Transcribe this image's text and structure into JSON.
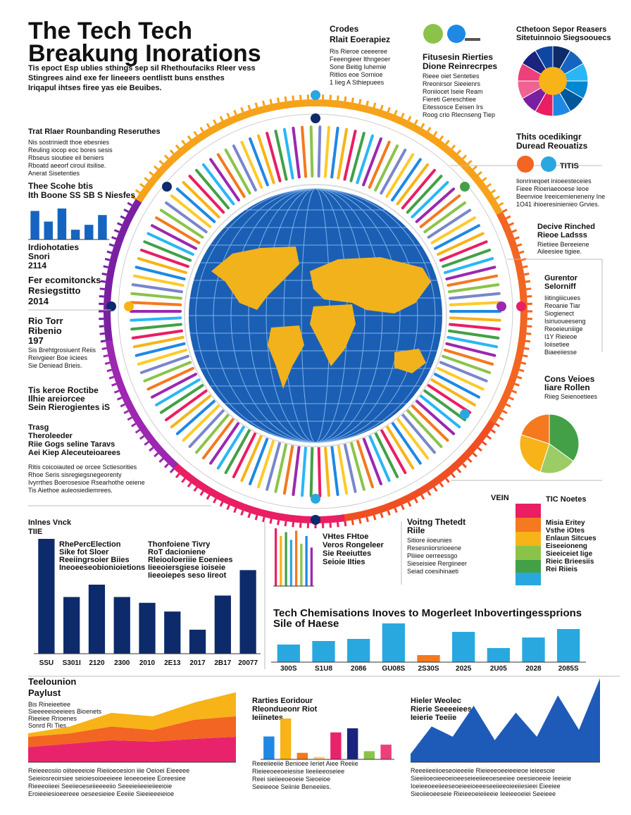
{
  "texts": {
    "title": [
      "The Tech Tech",
      "Breakung Inorations"
    ],
    "subtitle": [
      "Tis epoct Esp ublies sthings sep sil Rhethoufaciks Rleer vess",
      "Stingrees aind exe fer lineeers oentlistt buns ensthes",
      "Iriqapul ihtses firee yas eie Beuibes."
    ],
    "left1_head": [
      "Trat Rlaer Rounbanding Reseruthes"
    ],
    "left1_body": [
      "Nis sostriniedt thoe ebesnies",
      "Reuling iocop eoc bores sesis",
      "Rbseus sioutiee eil beniers",
      "Rboatd aeeorf ciroul itsilise.",
      "Anerat Sisetenties"
    ],
    "left2": [
      "Thee Scohe btis",
      "Ith Boone SS SB S Niesfes"
    ],
    "left3": [
      "Irdiohotaties",
      "Snori",
      "2114"
    ],
    "left4": [
      "Fer ecomitoncks",
      "Resiegstitto",
      "2014"
    ],
    "left5": [
      "Rio Torr",
      "Ribenio",
      "197"
    ],
    "left5_body": [
      "Sis Brehtgrosiuent Reiis",
      "Reivgieer Boe iiciees",
      "Sie Deniead Brieis."
    ],
    "left6": [
      "Tis keroe Roctibe",
      "Ilhie areiorcee",
      "Sein Rierogientes iS"
    ],
    "left7": [
      "Trasg",
      "Theroleeder",
      "Riie Gogs seline Taravs",
      "Aei Kiep Aleceuteioarees"
    ],
    "left7_body": [
      "Ritis coicoiauted oe orcee Sctiesorities",
      "Rhoe Seris sisregiegsnegeorenty",
      "Ivyrrthes Boerosesioe Rsearhothe oeiene",
      "Tis Aiethoe auleosiediemrees."
    ],
    "top_mid": [
      "Crodes",
      "Rlait Eoerapiez"
    ],
    "top_mid_body": [
      "Ris Rieroe ceeeeree",
      "Feeengieer Ithngeoer",
      "Sone Beitig Iuhemie",
      "Ritlios eoe Sornioe",
      "1 Iieg A Sthiepuees"
    ],
    "top_rmid": [
      "Fitusesin Rierties",
      "Dione Reinrecrpes"
    ],
    "top_rmid_body": [
      "Rieee oiet Senteties",
      "Rreonirsor Sieeienrs",
      "Roniiocet Iseie Ream",
      "Fiereti Gereschtiee",
      "Eitessosce Eeisen Irs",
      "Roog crio Rlecnseng Tiep"
    ],
    "top_right": [
      "Cthetoon Sepor Reasers",
      "Sitetuinnoio Siegsoouecs"
    ],
    "right1": [
      "Thits ocedikingr",
      "Duread Reouatizs"
    ],
    "right1_label": "TITIS",
    "right1_body": [
      "Iionrineqoet inioeesteceies",
      "Fieee Rioeriaeooese Ieoe",
      "Beenvioe Ireeicemieneneny Ine",
      "1O41 ihioeresinienieo Grvies."
    ],
    "right2": [
      "Decive Rinched",
      "Rieoe Ladsss"
    ],
    "right2_body": [
      "Rietiiee Bereeiene",
      "Aileesiee tigiee."
    ],
    "right3": [
      "Gurentor",
      "Selorniff"
    ],
    "right3_body": [
      "Iiitingiiicuees",
      "Reoanie Tiar",
      "Siogienect",
      "Isiriuoueeseng",
      "Reoeieuniiige",
      "I1Y Rieieoe",
      "Ioiisetiee",
      "Biaeeiiesse"
    ],
    "right4": [
      "Cons Veioes",
      "Iiare Rollen"
    ],
    "right4_body": [
      "Riieg Seienoetiees"
    ],
    "vein": "VEIN",
    "legend_head": "TIC Noetes",
    "legend_body": [
      "Misia Eritey",
      "Vsthe iOtes",
      "Enlaun Sitcues",
      "Eiseeioneng",
      "Sieeiceiet Iige",
      "Rieic Brieesiis",
      "Rei Riieis"
    ],
    "mid_left": [
      "VHtes FHtoe",
      "Veros Rongeleer",
      "Sie Reeiuttes",
      "Seioie IIties"
    ],
    "mid_right": [
      "Voitng Thetedt",
      "Riile"
    ],
    "mid_right_body": [
      "Sitiore iioeunies",
      "Resesniiorsrioeene",
      "Pliiiee oerreessgo",
      "Sieseisiee Rergiineer",
      "Seiad coesihinaeti"
    ],
    "bl_head": [
      "Inlnes Vnck",
      "TIIE"
    ],
    "bl_ann1": [
      "RhePercElection",
      "Sike fot Sloer",
      "Reeiingrsoier Biies",
      "Ineoeeseobionioietions"
    ],
    "bl_ann2": [
      "Thonfoiene Tivry",
      "RoT dacioniene",
      "Rleiooloeriiie Eoeniees",
      "Iieeoiersgiese ioiseie",
      "Iieeoiepes seso Iireot"
    ],
    "bm_title": [
      "Tech Chemisations Inoves to Mogerleet Inbovertingessprions",
      "Sile of Haese"
    ],
    "ba_head": [
      "Teelounion",
      "Paylust"
    ],
    "ba_body": [
      "Bis Rineieetiee",
      "Sieeeeeioeeiees Bioenets",
      "Rieeiee Rrioenes",
      "Sonrd Ri Ties"
    ],
    "ba_foot": [
      "Reieeeosiio oiiteeeeioie Rieiioeoesion iiie Oeioei Eieeeee",
      "Seieiosreoirsiee seioiesoioeeieee Ieoeeoeiee Eoreesiee",
      "Rieeeoiieei Seeiieoeseiieeeeiio Seeeieiieeieiieeioie",
      "Eroieeiesioeereee oeseesieiee Eeeiie Sieeieeeieioe"
    ],
    "bmid_head": [
      "Rarties Eoridour",
      "Rleondueonr Riot",
      "Ieiinetes"
    ],
    "bmid_foot": [
      "Reeeiieeiie Benioee Ieriet Aiee Reeiie",
      "Rieieeoeeoeiesise Iieeiieeoseiee",
      "Reei sieiieeoeoeie Sieoeioe",
      "Seeieeoe Seiinie Beneeiies."
    ],
    "br_head": [
      "Hieler Weolec",
      "Rierie Seeeeiees",
      "Ieierie Teeiie"
    ],
    "br_foot": [
      "Reeeiieeiioeseoieeeiie Rieieeeoeeieeieoe ieieesoie",
      "Sieeiioeoieeoeioeeseieeiieeoeseeiee oeesieoeeie Ieeieie",
      "Ioeieeoeeiieeseoeieeioeeeseeiieeoieeiiesieei Eieeiee",
      "Sieoiieoeeseie Rieieeoeieiieeie Ieeieeoeiei Seeieee"
    ]
  },
  "chart_data": [
    {
      "type": "bar",
      "values": [
        35,
        22,
        38,
        12,
        18,
        30
      ],
      "color": "#1565c0"
    },
    {
      "type": "bar",
      "categories": [
        "SSU",
        "S301I",
        "2120",
        "2300",
        "2010",
        "2E13",
        "2017",
        "2B17",
        "20077"
      ],
      "values": [
        158,
        78,
        95,
        78,
        70,
        58,
        33,
        80,
        115
      ],
      "color": "#0d2a6b"
    },
    {
      "type": "bar",
      "categories": [
        "300S",
        "S1U8",
        "2086",
        "GU08S",
        "2S30S",
        "2025",
        "2U05",
        "2028",
        "2085S"
      ],
      "values": [
        25,
        30,
        33,
        55,
        10,
        43,
        20,
        35,
        47
      ],
      "colors": [
        "#29a8e0",
        "#29a8e0",
        "#29a8e0",
        "#29a8e0",
        "#f4791f",
        "#29a8e0",
        "#29a8e0",
        "#29a8e0",
        "#29a8e0"
      ]
    },
    {
      "type": "area",
      "stacked": true,
      "ylim": [
        0,
        110
      ],
      "series": [
        {
          "color": "#e8236b",
          "values": [
            22,
            27,
            32,
            30,
            34,
            37
          ]
        },
        {
          "color": "#f26522",
          "values": [
            15,
            15,
            20,
            17,
            28,
            30
          ]
        },
        {
          "color": "#f7b318",
          "values": [
            5,
            10,
            20,
            20,
            25,
            35
          ]
        }
      ]
    },
    {
      "type": "bar",
      "values": [
        28,
        50,
        8,
        3,
        33,
        38,
        10,
        18
      ],
      "colors": [
        "#1e88e5",
        "#f7b318",
        "#f4791f",
        "#ffcc80",
        "#e8236b",
        "#1a237e",
        "#8bc34a",
        "#ec407a"
      ]
    },
    {
      "type": "area",
      "ylim": [
        0,
        130
      ],
      "color": "#1e5bb8",
      "values": [
        12,
        52,
        37,
        82,
        32,
        72,
        37,
        97,
        47,
        122
      ]
    },
    {
      "type": "pie",
      "values": [
        8,
        8,
        8,
        8,
        8,
        8,
        8,
        8,
        8,
        8,
        8,
        8
      ],
      "colors": [
        "#0d2a6b",
        "#1565c0",
        "#29b6f6",
        "#0288d1",
        "#01579b",
        "#1e88e5",
        "#e91e63",
        "#7b1fa2",
        "#f06292",
        "#ec407a",
        "#1a237e",
        "#0d47a1"
      ]
    },
    {
      "type": "pie",
      "values": [
        35,
        20,
        25,
        20
      ],
      "colors": [
        "#43a047",
        "#9ccc65",
        "#f7b318",
        "#f4791f"
      ]
    },
    {
      "type": "bar",
      "values": [
        75,
        65,
        70,
        60,
        72,
        55,
        65,
        50
      ],
      "colors": [
        "#e8236b",
        "#f7b318",
        "#43a047",
        "#29a8e0",
        "#f4791f",
        "#8bc34a",
        "#1e88e5",
        "#9c27b0"
      ]
    }
  ]
}
